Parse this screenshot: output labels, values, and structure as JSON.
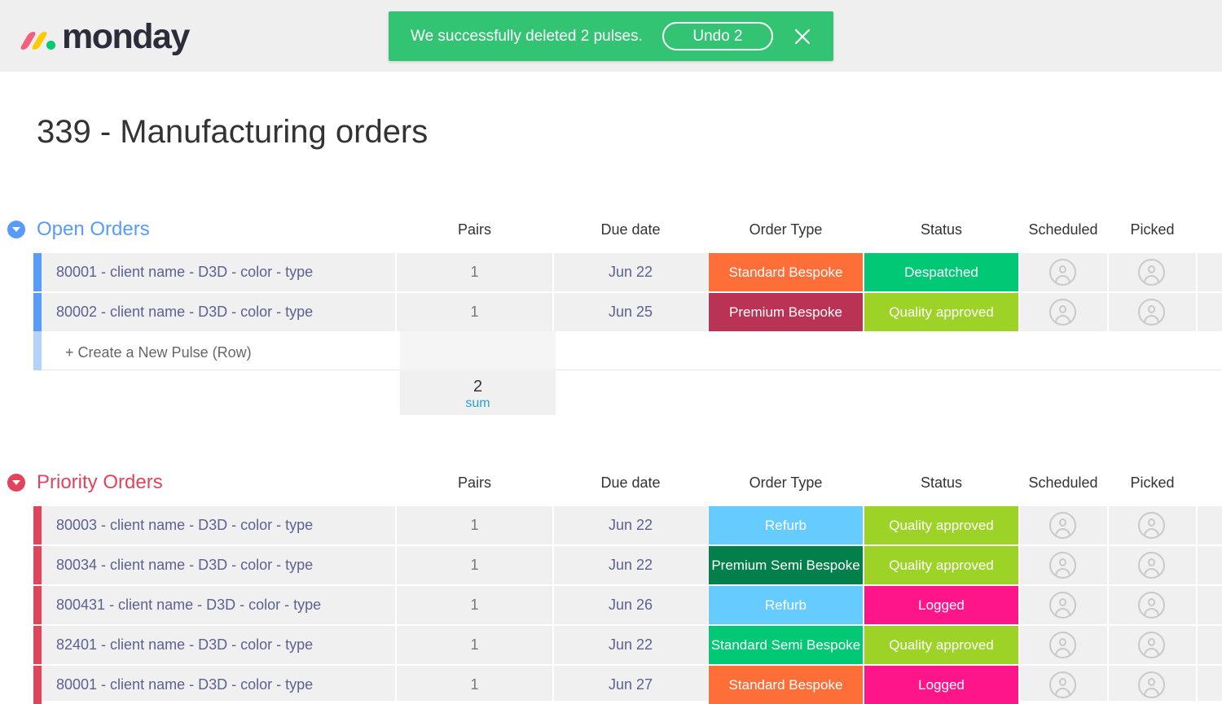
{
  "app": {
    "logo_text": "monday",
    "logo_colors": [
      "#f65f7c",
      "#ffcb00",
      "#00ca72"
    ]
  },
  "toast": {
    "message": "We successfully deleted 2 pulses.",
    "undo_label": "Undo 2",
    "close_icon": "close-icon",
    "color": "#33c473"
  },
  "board": {
    "title": "339 - Manufacturing orders"
  },
  "columns": {
    "pairs": "Pairs",
    "due_date": "Due date",
    "order_type": "Order Type",
    "status": "Status",
    "scheduled": "Scheduled",
    "picked": "Picked"
  },
  "groups": [
    {
      "name": "Open Orders",
      "color": "#579bfc",
      "rows": [
        {
          "name": "80001 - client name - D3D - color - type",
          "pairs": "1",
          "due": "Jun 22",
          "type": "Standard Bespoke",
          "type_color": "#fd6e38",
          "status": "Despatched",
          "status_color": "#00c875"
        },
        {
          "name": "80002 - client name - D3D - color - type",
          "pairs": "1",
          "due": "Jun 25",
          "type": "Premium Bespoke",
          "type_color": "#bb3354",
          "status": "Quality approved",
          "status_color": "#9cd326"
        }
      ],
      "new_row_label": "+ Create a New Pulse (Row)",
      "summary": {
        "value": "2",
        "label": "sum"
      }
    },
    {
      "name": "Priority Orders",
      "color": "#e2445c",
      "rows": [
        {
          "name": "80003 - client name - D3D - color - type",
          "pairs": "1",
          "due": "Jun 22",
          "type": "Refurb",
          "type_color": "#66ccff",
          "status": "Quality approved",
          "status_color": "#9cd326"
        },
        {
          "name": "80034 - client name - D3D - color - type",
          "pairs": "1",
          "due": "Jun 22",
          "type": "Premium Semi Bespoke",
          "type_color": "#037f4c",
          "status": "Quality approved",
          "status_color": "#9cd326"
        },
        {
          "name": "800431 - client name - D3D - color - type",
          "pairs": "1",
          "due": "Jun 26",
          "type": "Refurb",
          "type_color": "#66ccff",
          "status": "Logged",
          "status_color": "#ff158a"
        },
        {
          "name": "82401 - client name - D3D - color - type",
          "pairs": "1",
          "due": "Jun 22",
          "type": "Standard Semi Bespoke",
          "type_color": "#00c875",
          "status": "Quality approved",
          "status_color": "#9cd326"
        },
        {
          "name": "80001 - client name - D3D - color - type",
          "pairs": "1",
          "due": "Jun 27",
          "type": "Standard Bespoke",
          "type_color": "#fd6e38",
          "status": "Logged",
          "status_color": "#ff158a"
        }
      ]
    }
  ]
}
